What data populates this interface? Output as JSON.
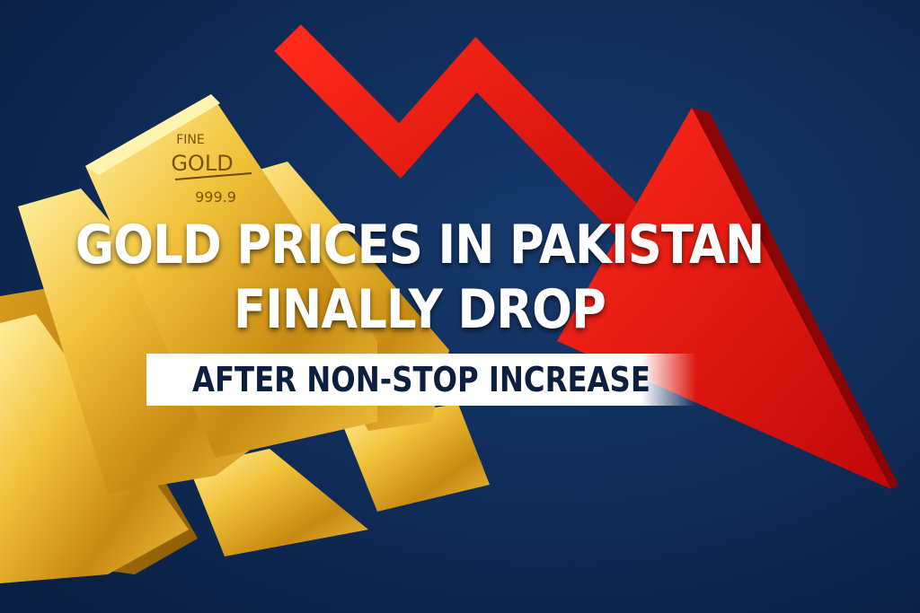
{
  "headline": {
    "line1": "GOLD PRICES IN PAKISTAN",
    "line2": "FINALLY DROP"
  },
  "subtitle": "AFTER NON-STOP INCREASE",
  "gold_bar": {
    "line1": "FINE",
    "line2": "GOLD",
    "purity": "999.9"
  },
  "colors": {
    "background": "#0d2750",
    "arrow": "#e01010",
    "gold": "#e0a820",
    "subtitle_text": "#0c1f3e"
  },
  "icons": {
    "arrow": "red-downtrend-arrow-icon"
  }
}
